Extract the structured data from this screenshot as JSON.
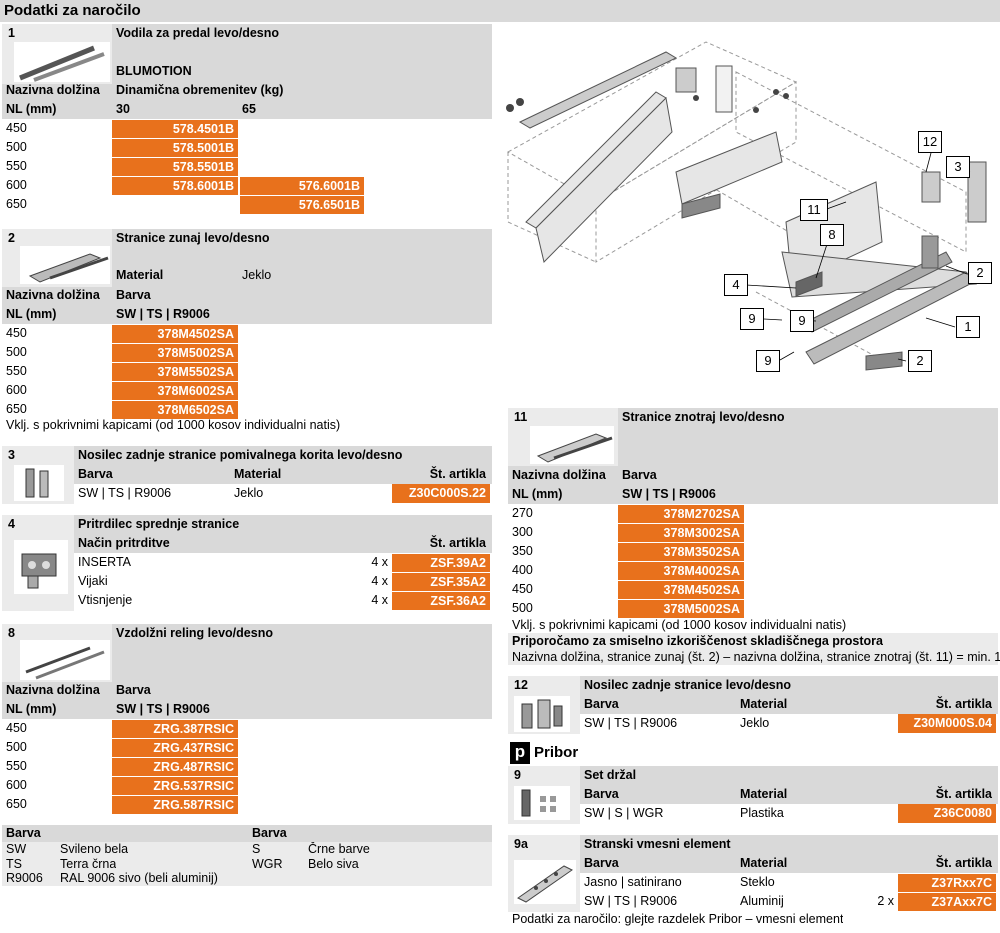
{
  "title": "Podatki za naročilo",
  "s1": {
    "num": "1",
    "name": "Vodila za predal levo/desno",
    "sub": "BLUMOTION",
    "h_nl": "Nazivna dolžina",
    "h_nl2": "NL (mm)",
    "h_load": "Dinamična obremenitev (kg)",
    "c30": "30",
    "c65": "65",
    "rows": [
      {
        "nl": "450",
        "a": "578.4501B",
        "b": ""
      },
      {
        "nl": "500",
        "a": "578.5001B",
        "b": ""
      },
      {
        "nl": "550",
        "a": "578.5501B",
        "b": ""
      },
      {
        "nl": "600",
        "a": "578.6001B",
        "b": "576.6001B"
      },
      {
        "nl": "650",
        "a": "",
        "b": "576.6501B"
      }
    ]
  },
  "s2": {
    "num": "2",
    "name": "Stranice zunaj levo/desno",
    "mat_l": "Material",
    "mat_v": "Jeklo",
    "h_nl": "Nazivna dolžina",
    "h_barva": "Barva",
    "h_nl2": "NL (mm)",
    "colors": "SW | TS | R9006",
    "rows": [
      {
        "nl": "450",
        "a": "378M4502SA"
      },
      {
        "nl": "500",
        "a": "378M5002SA"
      },
      {
        "nl": "550",
        "a": "378M5502SA"
      },
      {
        "nl": "600",
        "a": "378M6002SA"
      },
      {
        "nl": "650",
        "a": "378M6502SA"
      }
    ],
    "note": "Vklj. s pokrivnimi kapicami (od 1000 kosov individualni natis)"
  },
  "s3": {
    "num": "3",
    "name": "Nosilec zadnje stranice pomivalnega korita levo/desno",
    "h_barva": "Barva",
    "h_mat": "Material",
    "h_art": "Št. artikla",
    "barva": "SW | TS | R9006",
    "mat": "Jeklo",
    "art": "Z30C000S.22"
  },
  "s4": {
    "num": "4",
    "name": "Pritrdilec sprednje stranice",
    "h_nacin": "Način pritrditve",
    "h_art": "Št. artikla",
    "rows": [
      {
        "n": "INSERTA",
        "q": "4 x",
        "a": "ZSF.39A2"
      },
      {
        "n": "Vijaki",
        "q": "4 x",
        "a": "ZSF.35A2"
      },
      {
        "n": "Vtisnjenje",
        "q": "4 x",
        "a": "ZSF.36A2"
      }
    ]
  },
  "s8": {
    "num": "8",
    "name": "Vzdolžni reling levo/desno",
    "h_nl": "Nazivna dolžina",
    "h_barva": "Barva",
    "h_nl2": "NL (mm)",
    "colors": "SW | TS | R9006",
    "rows": [
      {
        "nl": "450",
        "a": "ZRG.387RSIC"
      },
      {
        "nl": "500",
        "a": "ZRG.437RSIC"
      },
      {
        "nl": "550",
        "a": "ZRG.487RSIC"
      },
      {
        "nl": "600",
        "a": "ZRG.537RSIC"
      },
      {
        "nl": "650",
        "a": "ZRG.587RSIC"
      }
    ]
  },
  "legend": {
    "h1": "Barva",
    "h2": "Barva",
    "left": [
      {
        "k": "SW",
        "v": "Svileno bela"
      },
      {
        "k": "TS",
        "v": "Terra črna"
      },
      {
        "k": "R9006",
        "v": "RAL 9006 sivo (beli aluminij)"
      }
    ],
    "right": [
      {
        "k": "S",
        "v": "Črne barve"
      },
      {
        "k": "WGR",
        "v": "Belo siva"
      }
    ]
  },
  "s11": {
    "num": "11",
    "name": "Stranice znotraj levo/desno",
    "h_nl": "Nazivna dolžina",
    "h_barva": "Barva",
    "h_nl2": "NL (mm)",
    "colors": "SW | TS | R9006",
    "rows": [
      {
        "nl": "270",
        "a": "378M2702SA"
      },
      {
        "nl": "300",
        "a": "378M3002SA"
      },
      {
        "nl": "350",
        "a": "378M3502SA"
      },
      {
        "nl": "400",
        "a": "378M4002SA"
      },
      {
        "nl": "450",
        "a": "378M4502SA"
      },
      {
        "nl": "500",
        "a": "378M5002SA"
      }
    ],
    "note": "Vklj. s pokrivnimi kapicami (od 1000 kosov individualni natis)",
    "rec_title": "Priporočamo za smiselno izkoriščenost skladiščnega prostora",
    "rec_text": "Nazivna dolžina, stranice zunaj (št. 2) – nazivna dolžina, stranice znotraj (št. 11) = min. 150 mm"
  },
  "s12": {
    "num": "12",
    "name": "Nosilec zadnje stranice levo/desno",
    "h_barva": "Barva",
    "h_mat": "Material",
    "h_art": "Št. artikla",
    "barva": "SW | TS | R9006",
    "mat": "Jeklo",
    "art": "Z30M000S.04"
  },
  "pribor": {
    "icon": "p",
    "title": "Pribor"
  },
  "s9": {
    "num": "9",
    "name": "Set držal",
    "h_barva": "Barva",
    "h_mat": "Material",
    "h_art": "Št. artikla",
    "barva": "SW | S | WGR",
    "mat": "Plastika",
    "art": "Z36C0080"
  },
  "s9a": {
    "num": "9a",
    "name": "Stranski vmesni element",
    "h_barva": "Barva",
    "h_mat": "Material",
    "h_art": "Št. artikla",
    "rows": [
      {
        "barva": "Jasno | satinirano",
        "mat": "Steklo",
        "q": "",
        "a": "Z37Rxx7C"
      },
      {
        "barva": "SW | TS | R9006",
        "mat": "Aluminij",
        "q": "2 x",
        "a": "Z37Axx7C"
      }
    ],
    "note": "Podatki za naročilo: glejte razdelek Pribor – vmesni element"
  },
  "callouts": [
    "12",
    "3",
    "11",
    "8",
    "2",
    "4",
    "9",
    "9",
    "1",
    "9",
    "2"
  ],
  "accent": "#e8711c"
}
